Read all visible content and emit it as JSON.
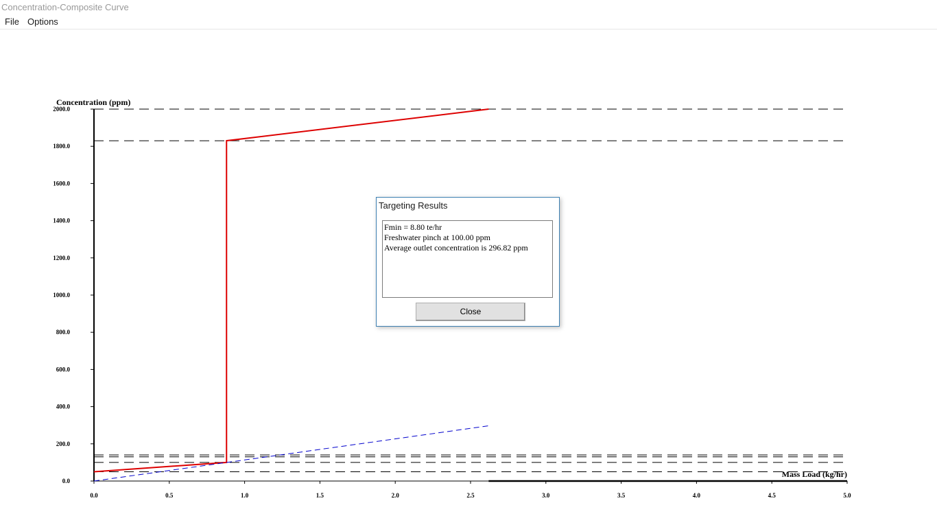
{
  "window": {
    "title": "Concentration-Composite Curve"
  },
  "menu": {
    "items": [
      "File",
      "Options"
    ]
  },
  "dialog": {
    "title": "Targeting Results",
    "lines": [
      "Fmin = 8.80 te/hr",
      "Freshwater pinch at 100.00 ppm",
      "Average outlet concentration is 296.82 ppm"
    ],
    "close_label": "Close"
  },
  "colors": {
    "composite_curve": "#dd0000",
    "water_supply_line": "#0000cc",
    "axis": "#000000",
    "reference_lines": "#000000"
  },
  "chart_data": {
    "type": "line",
    "ylabel": "Concentration (ppm)",
    "xlabel": "Mass Load (kg/hr)",
    "xlim": [
      0.0,
      5.0
    ],
    "ylim": [
      0.0,
      2000.0
    ],
    "x_ticks": [
      "0.0",
      "0.5",
      "1.0",
      "1.5",
      "2.0",
      "2.5",
      "3.0",
      "3.5",
      "4.0",
      "4.5",
      "5.0"
    ],
    "y_ticks": [
      "0.0",
      "200.0",
      "400.0",
      "600.0",
      "800.0",
      "1000.0",
      "1200.0",
      "1400.0",
      "1600.0",
      "1800.0",
      "2000.0"
    ],
    "grid": false,
    "reference_concentrations": [
      50,
      100,
      130,
      140,
      1830,
      2000
    ],
    "series": [
      {
        "style": "solid-red",
        "points": [
          [
            0.0,
            50
          ],
          [
            0.88,
            100
          ],
          [
            0.88,
            1830
          ],
          [
            2.62,
            2000
          ]
        ]
      },
      {
        "style": "dashed-blue",
        "points": [
          [
            0.0,
            0
          ],
          [
            2.62,
            297
          ]
        ]
      }
    ]
  }
}
